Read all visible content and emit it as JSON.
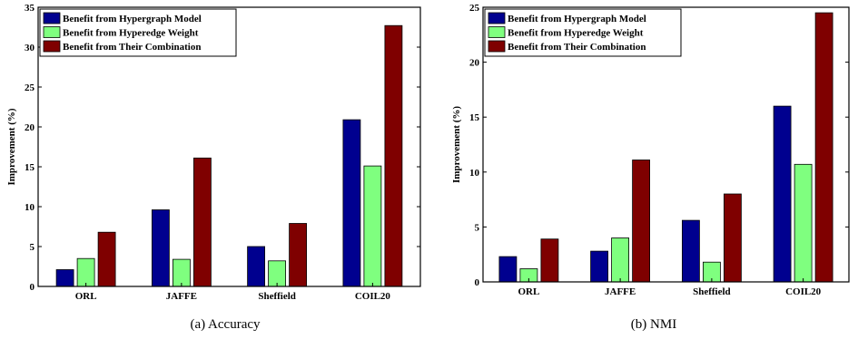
{
  "legend": [
    "Benefit from Hypergraph Model",
    "Benefit from Hyperedge Weight",
    "Benefit from Their Combination"
  ],
  "colors": [
    "#00008f",
    "#7fff7f",
    "#7f0000"
  ],
  "chart_data": [
    {
      "type": "bar",
      "caption": "(a)  Accuracy",
      "ylabel": "Improvement (%)",
      "categories": [
        "ORL",
        "JAFFE",
        "Sheffield",
        "COIL20"
      ],
      "ylim": [
        0,
        35
      ],
      "yticks": [
        0,
        5,
        10,
        15,
        20,
        25,
        30,
        35
      ],
      "legend_position": "top-left",
      "series": [
        {
          "name": "Benefit from Hypergraph Model",
          "values": [
            2.1,
            9.6,
            5.0,
            20.9
          ]
        },
        {
          "name": "Benefit from Hyperedge Weight",
          "values": [
            3.5,
            3.4,
            3.2,
            15.1
          ]
        },
        {
          "name": "Benefit from Their Combination",
          "values": [
            6.8,
            16.1,
            7.9,
            32.7
          ]
        }
      ]
    },
    {
      "type": "bar",
      "caption": "(b)  NMI",
      "ylabel": "Improvement (%)",
      "categories": [
        "ORL",
        "JAFFE",
        "Sheffield",
        "COIL20"
      ],
      "ylim": [
        0,
        25
      ],
      "yticks": [
        0,
        5,
        10,
        15,
        20,
        25
      ],
      "legend_position": "top-left",
      "series": [
        {
          "name": "Benefit from Hypergraph Model",
          "values": [
            2.3,
            2.8,
            5.6,
            16.0
          ]
        },
        {
          "name": "Benefit from Hyperedge Weight",
          "values": [
            1.2,
            4.0,
            1.8,
            10.7
          ]
        },
        {
          "name": "Benefit from Their Combination",
          "values": [
            3.9,
            11.1,
            8.0,
            24.5
          ]
        }
      ]
    }
  ]
}
